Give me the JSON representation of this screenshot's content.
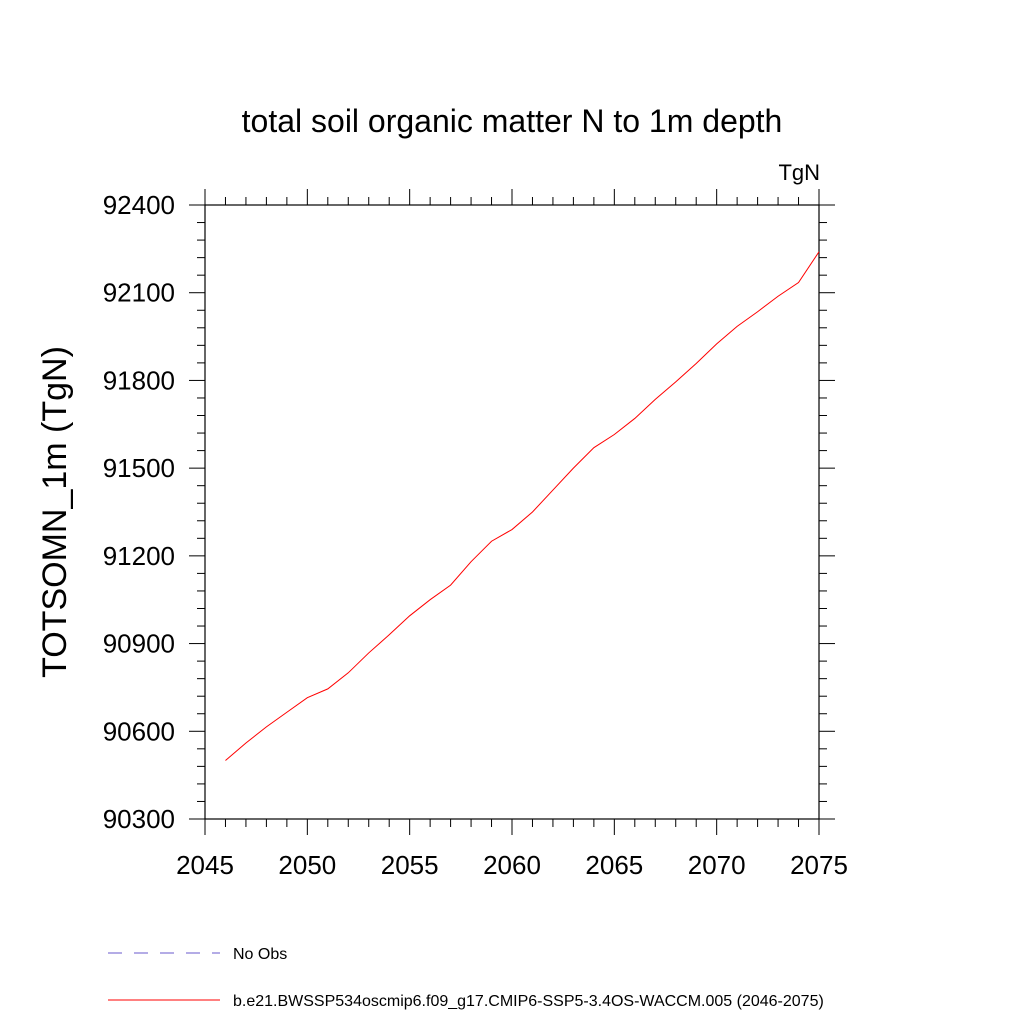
{
  "chart_data": {
    "type": "line",
    "title": "total soil organic matter N to 1m depth",
    "units_label": "TgN",
    "ylabel": "TOTSOMN_1m  (TgN)",
    "xlabel": "",
    "xlim": [
      2045,
      2075
    ],
    "ylim": [
      90300,
      92400
    ],
    "x_ticks": [
      2045,
      2050,
      2055,
      2060,
      2065,
      2070,
      2075
    ],
    "x_tick_labels": [
      "2045",
      "2050",
      "2055",
      "2060",
      "2065",
      "2070",
      "2075"
    ],
    "y_ticks": [
      90300,
      90600,
      90900,
      91200,
      91500,
      91800,
      92100,
      92400
    ],
    "y_tick_labels": [
      "90300",
      "90600",
      "90900",
      "91200",
      "91500",
      "91800",
      "92100",
      "92400"
    ],
    "grid": false,
    "legend_position": "bottom",
    "series": [
      {
        "name": "No Obs",
        "color": "#6a5acd",
        "style": "dashed",
        "x": [],
        "values": []
      },
      {
        "name": "b.e21.BWSSP534oscmip6.f09_g17.CMIP6-SSP5-3.4OS-WACCM.005 (2046-2075)",
        "color": "#ff0000",
        "style": "solid",
        "x": [
          2046,
          2047,
          2048,
          2049,
          2050,
          2051,
          2052,
          2053,
          2054,
          2055,
          2056,
          2057,
          2058,
          2059,
          2060,
          2061,
          2062,
          2063,
          2064,
          2065,
          2066,
          2067,
          2068,
          2069,
          2070,
          2071,
          2072,
          2073,
          2074,
          2075
        ],
        "values": [
          90500,
          90560,
          90615,
          90665,
          90715,
          90745,
          90800,
          90868,
          90930,
          90995,
          91050,
          91100,
          91180,
          91250,
          91290,
          91350,
          91425,
          91500,
          91570,
          91615,
          91670,
          91735,
          91795,
          91858,
          91925,
          91985,
          92035,
          92088,
          92135,
          92240
        ]
      }
    ]
  }
}
